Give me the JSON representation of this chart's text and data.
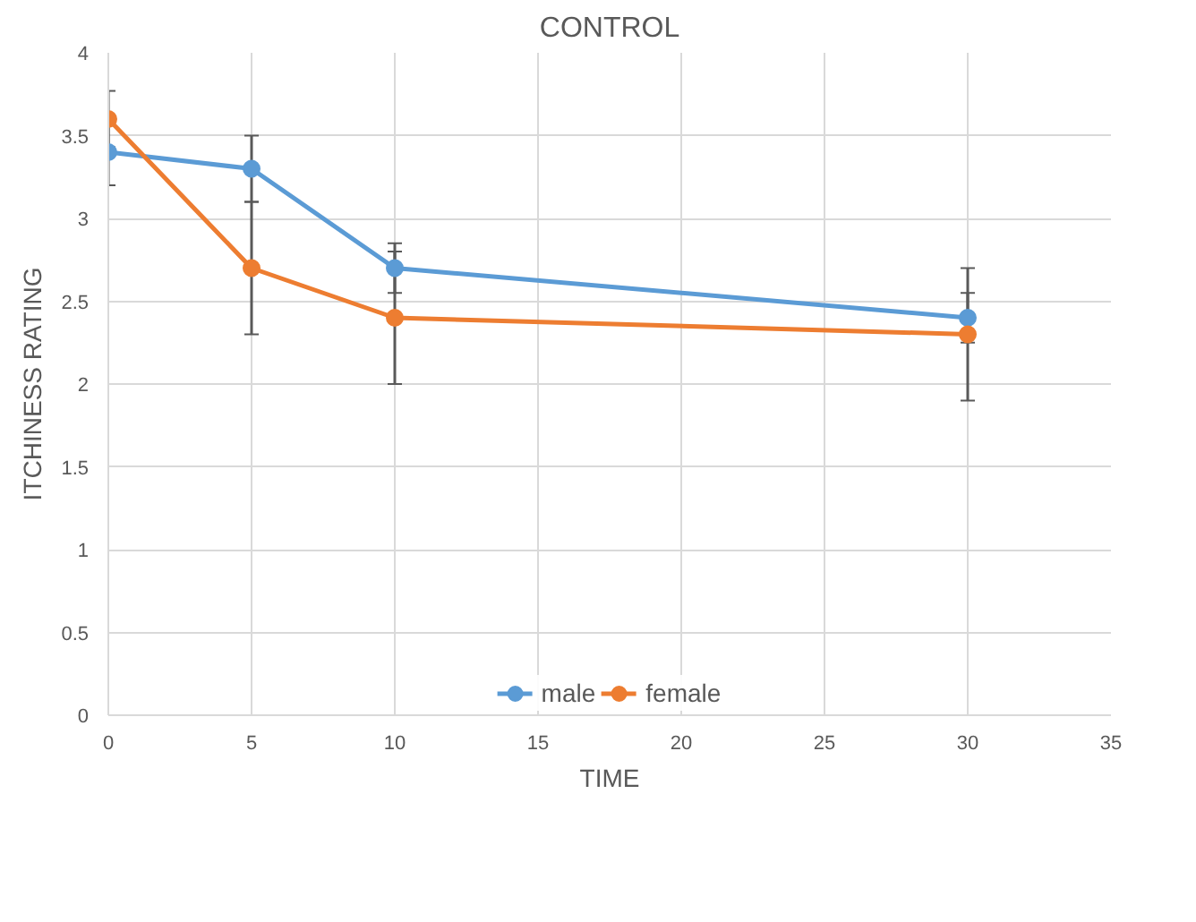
{
  "chart_data": {
    "type": "line",
    "title": "CONTROL",
    "xlabel": "TIME",
    "ylabel": "ITCHINESS RATING",
    "x": [
      0,
      5,
      10,
      30
    ],
    "series": [
      {
        "name": "male",
        "color": "#5b9bd5",
        "values": [
          3.4,
          3.3,
          2.7,
          2.4
        ],
        "errors": [
          0.2,
          0.2,
          0.15,
          0.15
        ]
      },
      {
        "name": "female",
        "color": "#ed7d31",
        "values": [
          3.6,
          2.7,
          2.4,
          2.3
        ],
        "errors": [
          0.17,
          0.4,
          0.4,
          0.4
        ]
      }
    ],
    "xlim": [
      0,
      35
    ],
    "xticks": [
      0,
      5,
      10,
      15,
      20,
      25,
      30,
      35
    ],
    "ylim": [
      0,
      4
    ],
    "yticks": [
      0,
      0.5,
      1,
      1.5,
      2,
      2.5,
      3,
      3.5,
      4
    ],
    "grid": true,
    "legend": "bottom",
    "marker": "circle",
    "line_style": "solid"
  }
}
